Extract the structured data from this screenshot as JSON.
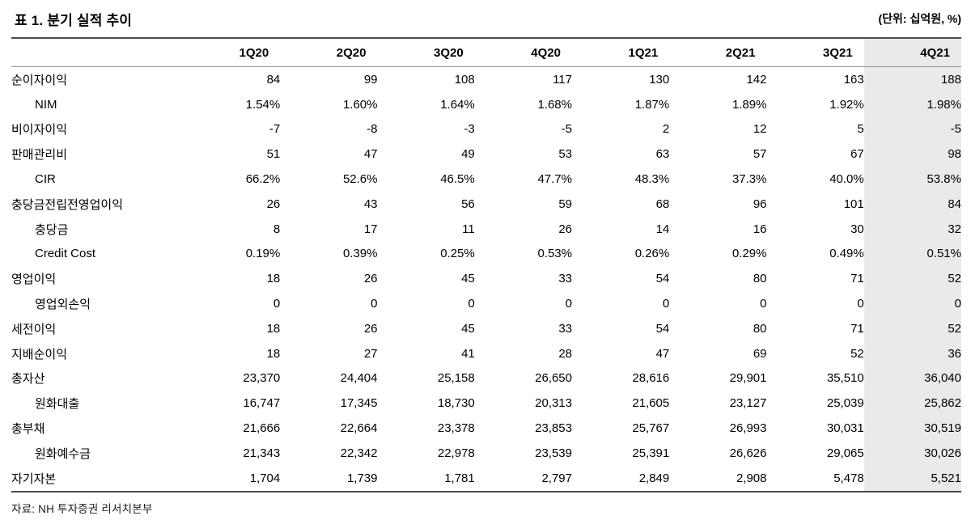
{
  "header": {
    "title": "표 1. 분기 실적 추이",
    "unit": "(단위: 십억원, %)"
  },
  "table": {
    "columns": [
      "1Q20",
      "2Q20",
      "3Q20",
      "4Q20",
      "1Q21",
      "2Q21",
      "3Q21",
      "4Q21"
    ],
    "highlighted_column": "4Q21",
    "highlight_color": "#eaeaea",
    "rows": [
      {
        "label": "순이자이익",
        "indent": false,
        "values": [
          "84",
          "99",
          "108",
          "117",
          "130",
          "142",
          "163",
          "188"
        ]
      },
      {
        "label": "NIM",
        "indent": true,
        "values": [
          "1.54%",
          "1.60%",
          "1.64%",
          "1.68%",
          "1.87%",
          "1.89%",
          "1.92%",
          "1.98%"
        ]
      },
      {
        "label": "비이자이익",
        "indent": false,
        "values": [
          "-7",
          "-8",
          "-3",
          "-5",
          "2",
          "12",
          "5",
          "-5"
        ]
      },
      {
        "label": "판매관리비",
        "indent": false,
        "values": [
          "51",
          "47",
          "49",
          "53",
          "63",
          "57",
          "67",
          "98"
        ]
      },
      {
        "label": "CIR",
        "indent": true,
        "values": [
          "66.2%",
          "52.6%",
          "46.5%",
          "47.7%",
          "48.3%",
          "37.3%",
          "40.0%",
          "53.8%"
        ]
      },
      {
        "label": "충당금전립전영업이익",
        "indent": false,
        "values": [
          "26",
          "43",
          "56",
          "59",
          "68",
          "96",
          "101",
          "84"
        ]
      },
      {
        "label": "충당금",
        "indent": true,
        "values": [
          "8",
          "17",
          "11",
          "26",
          "14",
          "16",
          "30",
          "32"
        ]
      },
      {
        "label": "Credit Cost",
        "indent": true,
        "values": [
          "0.19%",
          "0.39%",
          "0.25%",
          "0.53%",
          "0.26%",
          "0.29%",
          "0.49%",
          "0.51%"
        ]
      },
      {
        "label": "영업이익",
        "indent": false,
        "values": [
          "18",
          "26",
          "45",
          "33",
          "54",
          "80",
          "71",
          "52"
        ]
      },
      {
        "label": "영업외손익",
        "indent": true,
        "values": [
          "0",
          "0",
          "0",
          "0",
          "0",
          "0",
          "0",
          "0"
        ]
      },
      {
        "label": "세전이익",
        "indent": false,
        "values": [
          "18",
          "26",
          "45",
          "33",
          "54",
          "80",
          "71",
          "52"
        ]
      },
      {
        "label": "지배순이익",
        "indent": false,
        "values": [
          "18",
          "27",
          "41",
          "28",
          "47",
          "69",
          "52",
          "36"
        ]
      },
      {
        "label": "총자산",
        "indent": false,
        "values": [
          "23,370",
          "24,404",
          "25,158",
          "26,650",
          "28,616",
          "29,901",
          "35,510",
          "36,040"
        ]
      },
      {
        "label": "원화대출",
        "indent": true,
        "values": [
          "16,747",
          "17,345",
          "18,730",
          "20,313",
          "21,605",
          "23,127",
          "25,039",
          "25,862"
        ]
      },
      {
        "label": "총부채",
        "indent": false,
        "values": [
          "21,666",
          "22,664",
          "23,378",
          "23,853",
          "25,767",
          "26,993",
          "30,031",
          "30,519"
        ]
      },
      {
        "label": "원화예수금",
        "indent": true,
        "values": [
          "21,343",
          "22,342",
          "22,978",
          "23,539",
          "25,391",
          "26,626",
          "29,065",
          "30,026"
        ]
      },
      {
        "label": "자기자본",
        "indent": false,
        "values": [
          "1,704",
          "1,739",
          "1,781",
          "2,797",
          "2,849",
          "2,908",
          "5,478",
          "5,521"
        ]
      }
    ]
  },
  "footer": {
    "source": "자료: NH 투자증권 리서치본부"
  }
}
